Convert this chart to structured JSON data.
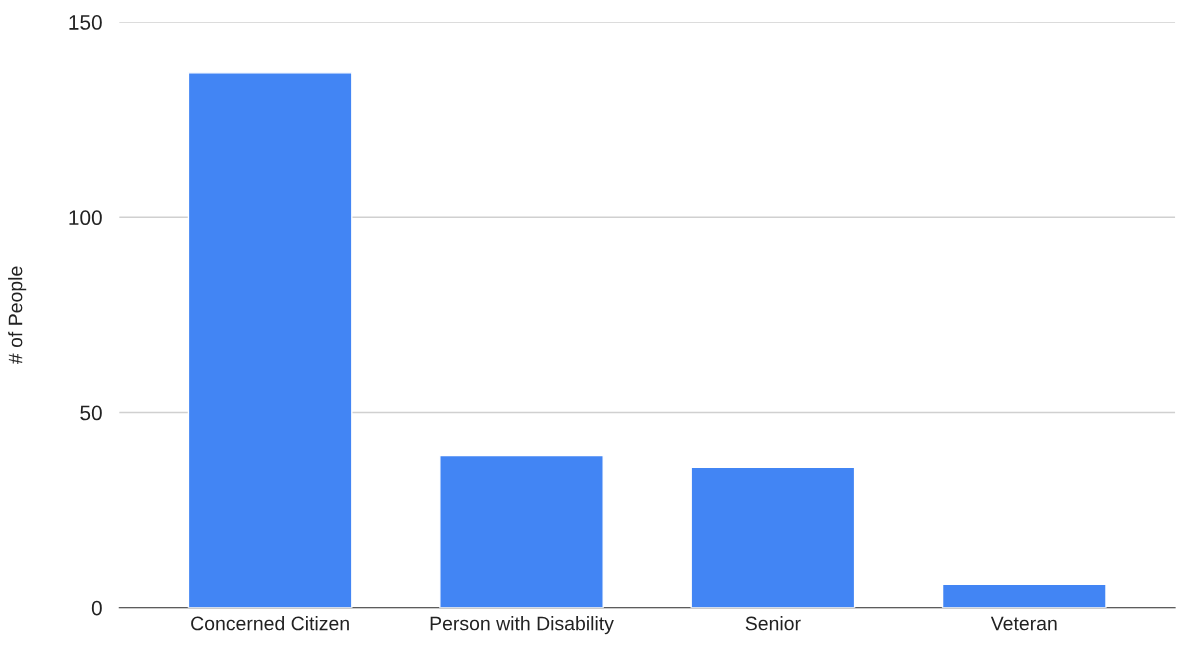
{
  "chart_data": {
    "type": "bar",
    "ylabel": "# of People",
    "categories": [
      "Concerned Citizen",
      "Person with Disability",
      "Senior",
      "Veteran"
    ],
    "values": [
      137,
      39,
      36,
      6
    ],
    "color": "#4285f4",
    "ylim": [
      0,
      150
    ],
    "yticks": [
      0,
      50,
      100,
      150
    ],
    "grid": "y",
    "legend": false
  }
}
